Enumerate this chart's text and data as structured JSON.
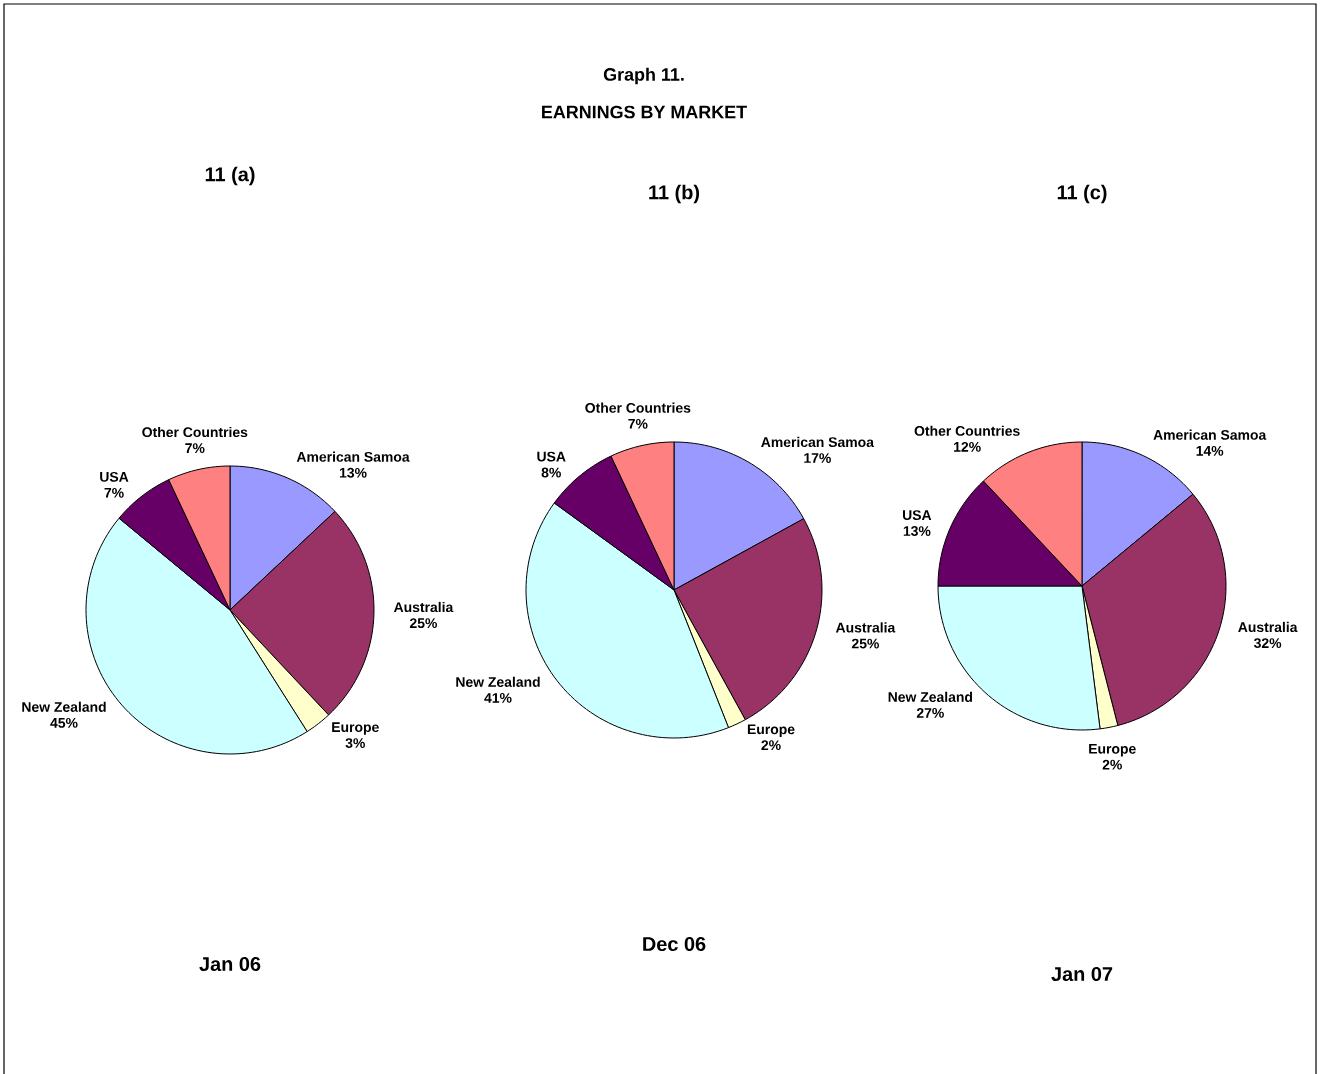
{
  "chart_data": [
    {
      "type": "pie",
      "title": "11 (a)",
      "xlabel": "Jan 06",
      "annotations": [
        "Graph 11.",
        "EARNINGS BY MARKET"
      ],
      "categories": [
        "American Samoa",
        "Australia",
        "Europe",
        "New Zealand",
        "USA",
        "Other Countries"
      ],
      "values": [
        13,
        25,
        3,
        45,
        7,
        7
      ],
      "value_labels": [
        "13%",
        "25%",
        "3%",
        "45%",
        "7%",
        "7%"
      ],
      "colors": [
        "#9999ff",
        "#993366",
        "#ffffcc",
        "#ccffff",
        "#660066",
        "#ff8080"
      ]
    },
    {
      "type": "pie",
      "title": "11 (b)",
      "xlabel": "Dec 06",
      "categories": [
        "American Samoa",
        "Australia",
        "Europe",
        "New Zealand",
        "USA",
        "Other Countries"
      ],
      "values": [
        17,
        25,
        2,
        41,
        8,
        7
      ],
      "value_labels": [
        "17%",
        "25%",
        "2%",
        "41%",
        "8%",
        "7%"
      ],
      "colors": [
        "#9999ff",
        "#993366",
        "#ffffcc",
        "#ccffff",
        "#660066",
        "#ff8080"
      ]
    },
    {
      "type": "pie",
      "title": "11 (c)",
      "xlabel": "Jan 07",
      "categories": [
        "American Samoa",
        "Australia",
        "Europe",
        "New Zealand",
        "USA",
        "Other Countries"
      ],
      "values": [
        14,
        32,
        2,
        27,
        13,
        12
      ],
      "value_labels": [
        "14%",
        "32%",
        "2%",
        "27%",
        "13%",
        "12%"
      ],
      "colors": [
        "#9999ff",
        "#993366",
        "#ffffcc",
        "#ccffff",
        "#660066",
        "#ff8080"
      ]
    }
  ]
}
